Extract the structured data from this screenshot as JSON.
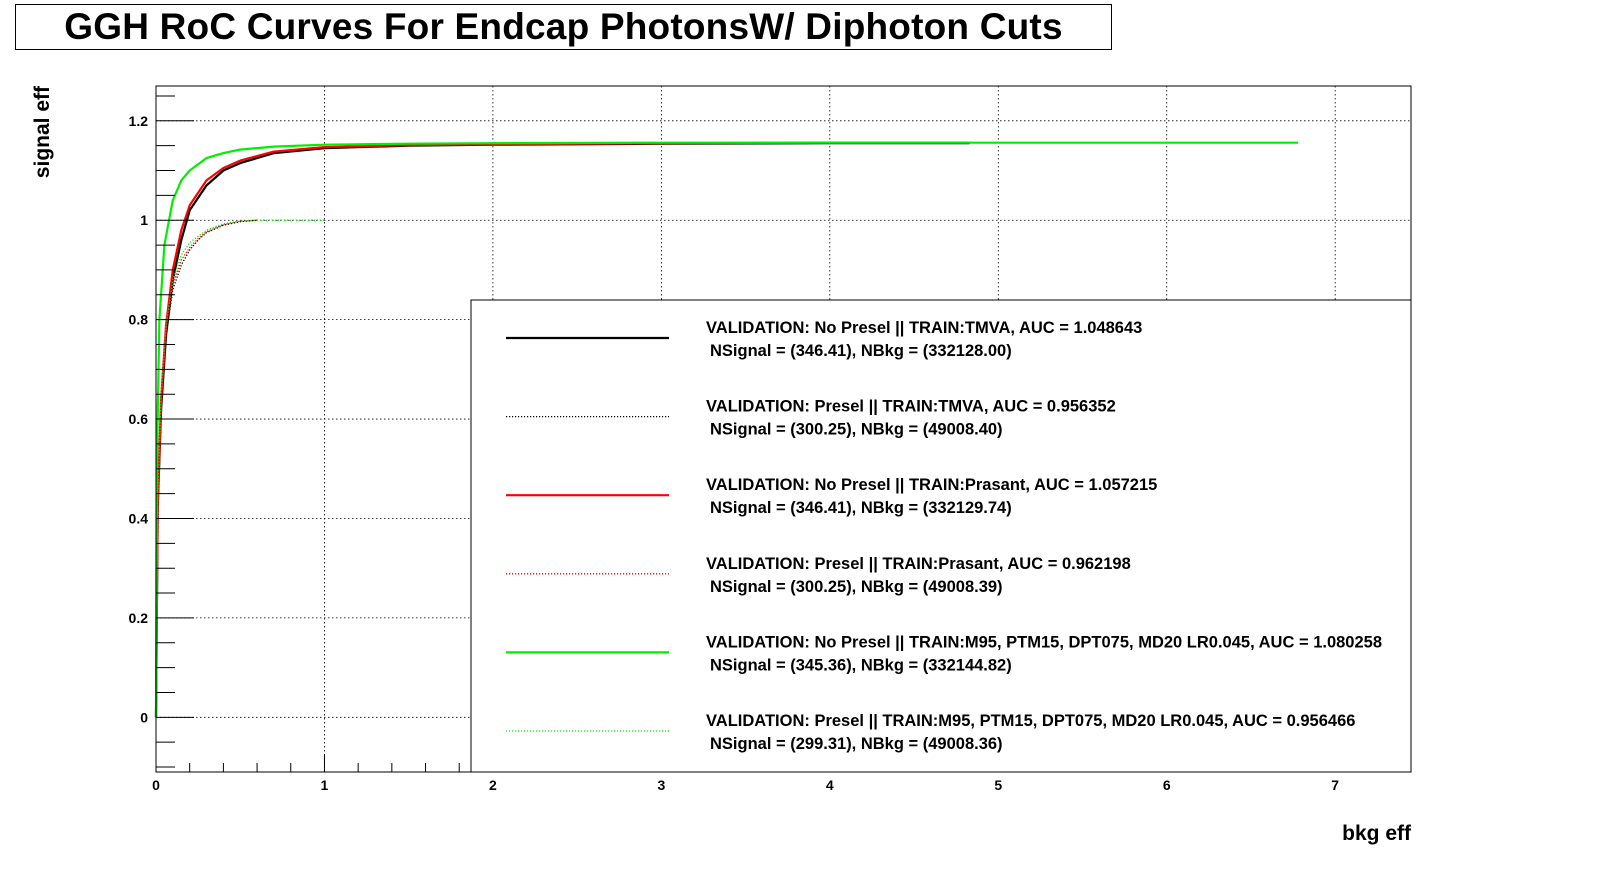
{
  "title": "GGH RoC Curves For Endcap PhotonsW/ Diphoton Cuts",
  "chart_data": {
    "type": "line",
    "xlabel": "bkg eff",
    "ylabel": "signal eff",
    "xlim": [
      0,
      7.45
    ],
    "ylim": [
      -0.11,
      1.27
    ],
    "x_ticks": [
      0,
      1,
      2,
      3,
      4,
      5,
      6,
      7
    ],
    "x_tick_labels": [
      "0",
      "1",
      "2",
      "3",
      "4",
      "5",
      "6",
      "7"
    ],
    "y_ticks": [
      0,
      0.2,
      0.4,
      0.6,
      0.8,
      1,
      1.2
    ],
    "y_tick_labels": [
      "0",
      "0.2",
      "0.4",
      "0.6",
      "0.8",
      "1",
      "1.2"
    ],
    "grid": true,
    "legend_position": "bottom-right",
    "series": [
      {
        "name": "VALIDATION: No Presel || TRAIN:TMVA, AUC = 1.048643",
        "stats": "NSignal = (346.41), NBkg = (332128.00)",
        "color": "#000000",
        "dash": "solid",
        "x": [
          0,
          0.01,
          0.03,
          0.06,
          0.1,
          0.15,
          0.2,
          0.3,
          0.4,
          0.5,
          0.7,
          1.0,
          1.5,
          2.0,
          3.0,
          4.0,
          4.83
        ],
        "y": [
          0,
          0.42,
          0.62,
          0.77,
          0.88,
          0.96,
          1.02,
          1.07,
          1.1,
          1.115,
          1.135,
          1.145,
          1.15,
          1.152,
          1.154,
          1.155,
          1.155
        ]
      },
      {
        "name": "VALIDATION: Presel || TRAIN:TMVA, AUC = 0.956352",
        "stats": "NSignal = (300.25), NBkg = (49008.40)",
        "color": "#000000",
        "dash": "dotted",
        "x": [
          0,
          0.01,
          0.03,
          0.06,
          0.1,
          0.15,
          0.2,
          0.25,
          0.3,
          0.4,
          0.5,
          0.6
        ],
        "y": [
          0,
          0.42,
          0.62,
          0.77,
          0.86,
          0.91,
          0.94,
          0.96,
          0.975,
          0.99,
          0.997,
          1.0
        ]
      },
      {
        "name": "VALIDATION: No Presel || TRAIN:Prasant, AUC = 1.057215",
        "stats": "NSignal = (346.41), NBkg = (332129.74)",
        "color": "#ff0000",
        "dash": "solid",
        "x": [
          0,
          0.01,
          0.03,
          0.06,
          0.1,
          0.15,
          0.2,
          0.3,
          0.4,
          0.5,
          0.7,
          1.0,
          1.5,
          2.0,
          3.0,
          4.0,
          4.83
        ],
        "y": [
          0,
          0.43,
          0.64,
          0.79,
          0.9,
          0.98,
          1.03,
          1.08,
          1.105,
          1.12,
          1.138,
          1.147,
          1.151,
          1.153,
          1.155,
          1.156,
          1.156
        ]
      },
      {
        "name": "VALIDATION: Presel || TRAIN:Prasant, AUC = 0.962198",
        "stats": "NSignal = (300.25), NBkg = (49008.39)",
        "color": "#ff0000",
        "dash": "dotted",
        "x": [
          0,
          0.01,
          0.03,
          0.06,
          0.1,
          0.15,
          0.2,
          0.25,
          0.3,
          0.4,
          0.5,
          0.6
        ],
        "y": [
          0,
          0.43,
          0.63,
          0.78,
          0.87,
          0.92,
          0.945,
          0.963,
          0.977,
          0.991,
          0.998,
          1.0
        ]
      },
      {
        "name": "VALIDATION: No Presel || TRAIN:M95, PTM15, DPT075, MD20 LR0.045, AUC = 1.080258",
        "stats": "NSignal = (345.36), NBkg = (332144.82)",
        "color": "#00ee00",
        "dash": "solid",
        "x": [
          0,
          0.005,
          0.02,
          0.05,
          0.1,
          0.15,
          0.2,
          0.3,
          0.4,
          0.5,
          0.7,
          1.0,
          1.5,
          2.0,
          3.0,
          4.0,
          5.0,
          6.0,
          6.78
        ],
        "y": [
          0,
          0.5,
          0.8,
          0.95,
          1.04,
          1.08,
          1.1,
          1.125,
          1.135,
          1.142,
          1.148,
          1.152,
          1.154,
          1.155,
          1.156,
          1.156,
          1.156,
          1.156,
          1.156
        ]
      },
      {
        "name": "VALIDATION: Presel || TRAIN:M95, PTM15, DPT075, MD20 LR0.045, AUC = 0.956466",
        "stats": "NSignal = (299.31), NBkg = (49008.36)",
        "color": "#00ee00",
        "dash": "dotted",
        "x": [
          0,
          0.01,
          0.03,
          0.06,
          0.1,
          0.15,
          0.2,
          0.3,
          0.4,
          0.5,
          0.6,
          0.8,
          1.0
        ],
        "y": [
          0,
          0.44,
          0.65,
          0.79,
          0.88,
          0.93,
          0.955,
          0.98,
          0.993,
          0.998,
          1.0,
          1.0,
          1.0
        ]
      }
    ]
  }
}
